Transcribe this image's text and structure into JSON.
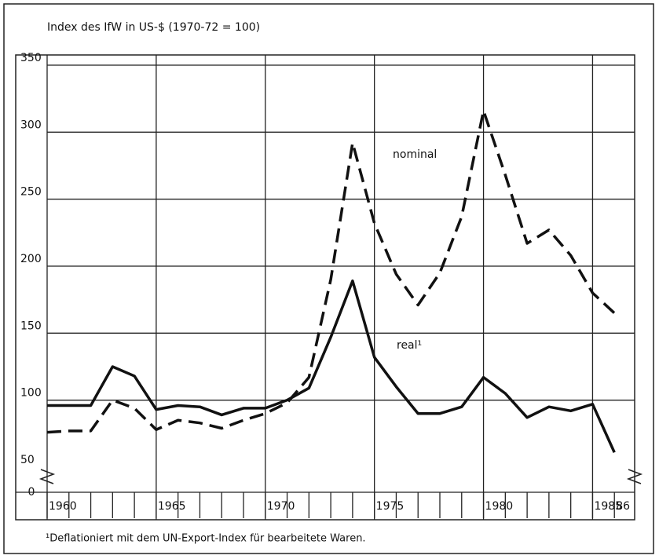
{
  "chart_data": {
    "type": "line",
    "title": "Index des IfW in US-$ (1970-72 = 100)",
    "footnote": "¹Deflationiert mit dem UN-Export-Index für bearbeitete Waren.",
    "axis_break_label": "0",
    "x": [
      1960,
      1961,
      1962,
      1963,
      1964,
      1965,
      1966,
      1967,
      1968,
      1969,
      1970,
      1971,
      1972,
      1973,
      1974,
      1975,
      1976,
      1977,
      1978,
      1979,
      1980,
      1981,
      1982,
      1983,
      1984,
      1985,
      1986
    ],
    "series": [
      {
        "name": "nominal",
        "color": "#111",
        "style": "dashed",
        "values": [
          76,
          77,
          77,
          100,
          94,
          78,
          85,
          83,
          79,
          85,
          90,
          98,
          117,
          190,
          292,
          232,
          194,
          171,
          195,
          237,
          316,
          268,
          217,
          227,
          208,
          180,
          165
        ]
      },
      {
        "name": "real¹",
        "color": "#111",
        "style": "solid",
        "values": [
          96,
          96,
          96,
          125,
          118,
          93,
          96,
          95,
          89,
          94,
          94,
          100,
          109,
          147,
          189,
          132,
          110,
          90,
          90,
          95,
          117,
          105,
          87,
          95,
          92,
          97,
          61
        ]
      }
    ],
    "xlim": [
      1960,
      1987
    ],
    "xticks": [
      1960,
      1965,
      1970,
      1975,
      1980,
      1985,
      {
        "value": 1986,
        "label": "86"
      }
    ],
    "ylim": [
      50,
      350
    ],
    "yticks": [
      50,
      100,
      150,
      200,
      250,
      300,
      350
    ],
    "grid": true
  }
}
